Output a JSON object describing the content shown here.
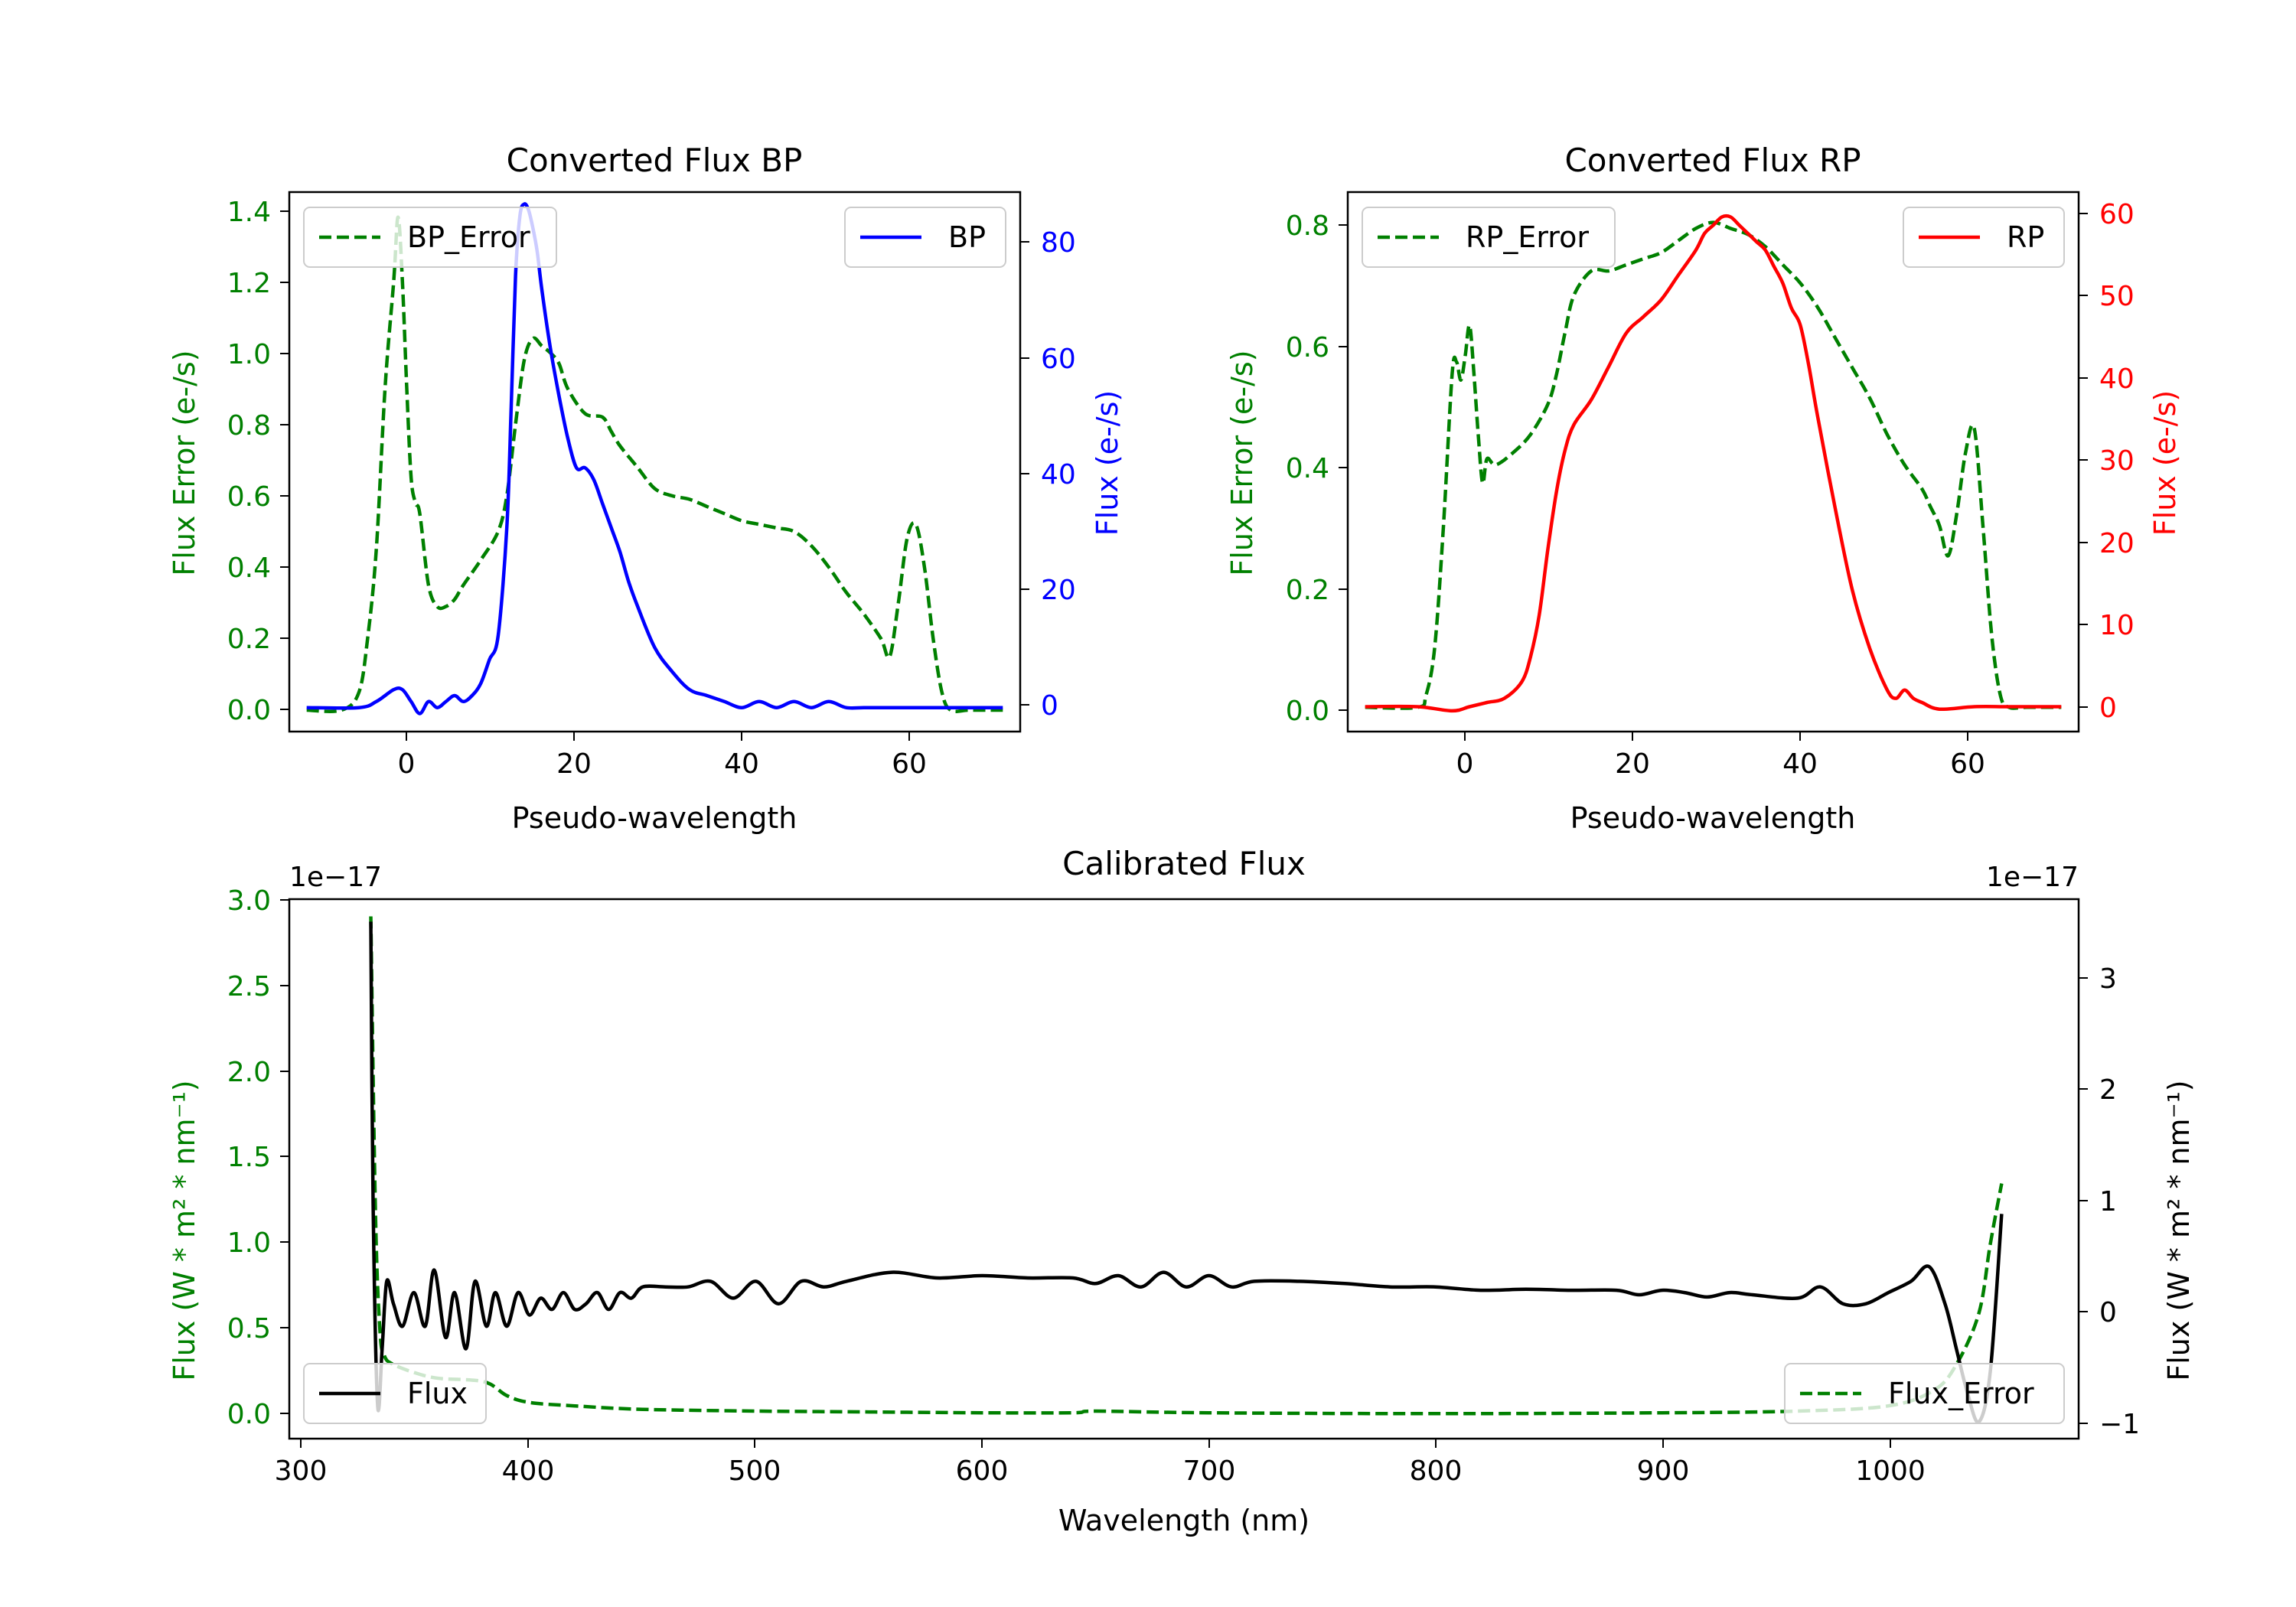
{
  "colors": {
    "green": "#008000",
    "blue": "#0000ff",
    "red": "#ff0000",
    "black": "#000000",
    "legend_edge": "#cccccc"
  },
  "chart_data": [
    {
      "id": "bp",
      "type": "line",
      "title": "Converted Flux BP",
      "xlabel": "Pseudo-wavelength",
      "xlim": [
        -12,
        72
      ],
      "xticks": [
        "0",
        "20",
        "40",
        "60"
      ],
      "left_axis": {
        "label": "Flux Error (e-/s)",
        "color_key": "green",
        "ylim": [
          -0.06,
          1.45
        ],
        "ticks": [
          "0.0",
          "0.2",
          "0.4",
          "0.6",
          "0.8",
          "1.0",
          "1.2",
          "1.4"
        ]
      },
      "right_axis": {
        "label": "Flux (e-/s)",
        "color_key": "blue",
        "ylim": [
          -4,
          86
        ],
        "ticks": [
          "0",
          "20",
          "40",
          "60",
          "80"
        ]
      },
      "series": [
        {
          "name": "BP_Error",
          "axis": "left",
          "style": "dashed",
          "color_key": "green",
          "x": [
            -10,
            -6,
            -4,
            -3,
            -2,
            -1,
            0,
            0.5,
            1,
            1.5,
            2,
            2.5,
            3,
            4,
            5,
            6,
            7,
            8,
            10,
            12,
            13,
            14,
            15,
            16,
            17,
            18,
            19,
            20,
            22,
            24,
            25,
            26,
            28,
            30,
            32,
            34,
            36,
            38,
            40,
            42,
            44,
            46,
            48,
            50,
            52,
            54,
            56,
            57,
            58,
            59,
            60,
            61,
            62,
            63,
            64,
            66,
            68,
            70
          ],
          "y": [
            0.0,
            0.0,
            0.05,
            0.2,
            0.45,
            0.9,
            1.2,
            1.38,
            1.2,
            0.9,
            0.65,
            0.58,
            0.55,
            0.35,
            0.29,
            0.29,
            0.31,
            0.35,
            0.42,
            0.5,
            0.6,
            0.8,
            0.98,
            1.04,
            1.02,
            1.0,
            0.97,
            0.9,
            0.83,
            0.82,
            0.78,
            0.74,
            0.68,
            0.62,
            0.6,
            0.59,
            0.57,
            0.55,
            0.53,
            0.52,
            0.51,
            0.5,
            0.46,
            0.4,
            0.33,
            0.27,
            0.2,
            0.15,
            0.3,
            0.48,
            0.52,
            0.4,
            0.2,
            0.05,
            0.0,
            0.0,
            0.0,
            0.0
          ]
        },
        {
          "name": "BP",
          "axis": "right",
          "style": "solid",
          "color_key": "blue",
          "x": [
            -10,
            -4,
            -2,
            0,
            1,
            2,
            3,
            4,
            5,
            6,
            7,
            8,
            9,
            10,
            11,
            12,
            13,
            13.5,
            14,
            14.5,
            15,
            15.5,
            16,
            16.5,
            17,
            18,
            19,
            20,
            21,
            22,
            23,
            24,
            25,
            26,
            27,
            28,
            30,
            32,
            34,
            36,
            38,
            40,
            42,
            44,
            46,
            48,
            50,
            52,
            54,
            56,
            60,
            64,
            68,
            70
          ],
          "y": [
            0,
            0,
            1,
            3,
            3,
            1,
            -1,
            1,
            0,
            1,
            2,
            1,
            2,
            4,
            8,
            12,
            30,
            50,
            72,
            82,
            84,
            83,
            80,
            76,
            70,
            60,
            52,
            45,
            40,
            40,
            38,
            34,
            30,
            26,
            21,
            17,
            10,
            6,
            3,
            2,
            1,
            0,
            1,
            0,
            1,
            0,
            1,
            0,
            0,
            0,
            0,
            0,
            0,
            0
          ]
        }
      ],
      "legend_left": "BP_Error",
      "legend_right": "BP"
    },
    {
      "id": "rp",
      "type": "line",
      "title": "Converted Flux RP",
      "xlabel": "Pseudo-wavelength",
      "xlim": [
        -12,
        72
      ],
      "xticks": [
        "0",
        "20",
        "40",
        "60"
      ],
      "left_axis": {
        "label": "Flux Error (e-/s)",
        "color_key": "green",
        "ylim": [
          -0.04,
          0.85
        ],
        "ticks": [
          "0.0",
          "0.2",
          "0.4",
          "0.6",
          "0.8"
        ]
      },
      "right_axis": {
        "label": "Flux (e-/s)",
        "color_key": "red",
        "ylim": [
          -3,
          62
        ],
        "ticks": [
          "0",
          "10",
          "20",
          "30",
          "40",
          "50",
          "60"
        ]
      },
      "series": [
        {
          "name": "RP_Error",
          "axis": "left",
          "style": "dashed",
          "color_key": "green",
          "x": [
            -10,
            -4,
            -3,
            -2,
            -1,
            0,
            0.5,
            1,
            1.5,
            2,
            2.5,
            3,
            3.5,
            4,
            5,
            7,
            9,
            11,
            12,
            13,
            14,
            16,
            18,
            20,
            22,
            24,
            26,
            28,
            30,
            32,
            34,
            36,
            38,
            40,
            42,
            44,
            46,
            48,
            50,
            52,
            54,
            55,
            56,
            57,
            58,
            59,
            60,
            61,
            62,
            63,
            64,
            66,
            70
          ],
          "y": [
            0.0,
            0.0,
            0.02,
            0.1,
            0.3,
            0.55,
            0.57,
            0.54,
            0.58,
            0.63,
            0.55,
            0.45,
            0.37,
            0.41,
            0.4,
            0.42,
            0.45,
            0.5,
            0.55,
            0.62,
            0.68,
            0.72,
            0.72,
            0.73,
            0.74,
            0.75,
            0.77,
            0.79,
            0.8,
            0.79,
            0.78,
            0.76,
            0.73,
            0.7,
            0.66,
            0.61,
            0.56,
            0.51,
            0.45,
            0.4,
            0.36,
            0.33,
            0.3,
            0.25,
            0.32,
            0.42,
            0.46,
            0.3,
            0.12,
            0.02,
            0.0,
            0.0,
            0.0
          ]
        },
        {
          "name": "RP",
          "axis": "right",
          "style": "solid",
          "color_key": "red",
          "x": [
            -10,
            -4,
            0,
            2,
            4,
            6,
            8,
            9,
            10,
            11,
            12,
            13,
            14,
            16,
            18,
            20,
            22,
            24,
            26,
            28,
            29,
            30,
            31,
            32,
            33,
            34,
            35,
            36,
            37,
            38,
            39,
            40,
            41,
            42,
            44,
            46,
            48,
            50,
            51,
            52,
            53,
            54,
            56,
            60,
            64,
            70
          ],
          "y": [
            0,
            0,
            -0.5,
            0,
            0.5,
            1,
            3,
            6,
            11,
            19,
            26,
            31,
            34,
            37,
            41,
            45,
            47,
            49,
            52,
            55,
            57,
            58,
            59,
            59,
            58,
            57,
            56,
            55,
            53,
            51,
            48,
            46,
            41,
            35,
            24,
            14,
            7,
            2,
            1,
            2,
            1,
            0.5,
            -0.3,
            0,
            0,
            0
          ]
        }
      ],
      "legend_left": "RP_Error",
      "legend_right": "RP"
    },
    {
      "id": "cal",
      "type": "line",
      "title": "Calibrated Flux",
      "xlabel": "Wavelength (nm)",
      "xlim": [
        294,
        1084
      ],
      "xticks": [
        "300",
        "400",
        "500",
        "600",
        "700",
        "800",
        "900",
        "1000"
      ],
      "left_axis": {
        "label": "Flux (W * m² * nm⁻¹)",
        "color_key": "green",
        "ylim": [
          -0.13,
          3.0
        ],
        "ticks": [
          "0.0",
          "0.5",
          "1.0",
          "1.5",
          "2.0",
          "2.5",
          "3.0"
        ],
        "offset": "1e−17"
      },
      "right_axis": {
        "label": "Flux (W * m² * nm⁻¹)",
        "color_key": "black",
        "ylim": [
          -1.1,
          3.7
        ],
        "ticks": [
          "−1",
          "0",
          "1",
          "2",
          "3"
        ],
        "offset": "1e−17"
      },
      "series": [
        {
          "name": "Flux_Error",
          "axis": "left",
          "style": "dashed",
          "color_key": "green",
          "x": [
            330,
            332,
            334,
            336,
            340,
            350,
            360,
            380,
            390,
            400,
            420,
            450,
            500,
            550,
            600,
            640,
            650,
            700,
            800,
            900,
            960,
            1000,
            1020,
            1030,
            1040,
            1045,
            1050
          ],
          "y": [
            2.9,
            1.2,
            0.5,
            0.35,
            0.3,
            0.25,
            0.22,
            0.2,
            0.12,
            0.08,
            0.06,
            0.04,
            0.03,
            0.025,
            0.02,
            0.02,
            0.03,
            0.02,
            0.015,
            0.02,
            0.03,
            0.06,
            0.15,
            0.3,
            0.6,
            1.0,
            1.35
          ]
        },
        {
          "name": "Flux",
          "axis": "right",
          "style": "solid",
          "color_key": "black",
          "x": [
            330,
            331,
            333,
            335,
            337,
            340,
            344,
            349,
            354,
            358,
            363,
            367,
            372,
            376,
            381,
            385,
            390,
            395,
            400,
            405,
            410,
            415,
            420,
            425,
            430,
            435,
            440,
            445,
            450,
            460,
            470,
            480,
            490,
            500,
            510,
            520,
            530,
            540,
            560,
            580,
            600,
            620,
            640,
            650,
            660,
            670,
            680,
            690,
            700,
            710,
            720,
            740,
            760,
            780,
            800,
            820,
            840,
            860,
            880,
            890,
            900,
            910,
            920,
            930,
            940,
            960,
            970,
            980,
            990,
            1000,
            1010,
            1018,
            1025,
            1030,
            1035,
            1040,
            1045,
            1050
          ],
          "y": [
            3.5,
            1.0,
            -0.8,
            -0.3,
            0.3,
            0.1,
            -0.1,
            0.2,
            -0.1,
            0.4,
            -0.2,
            0.2,
            -0.3,
            0.3,
            -0.1,
            0.2,
            -0.1,
            0.2,
            0.0,
            0.15,
            0.05,
            0.2,
            0.05,
            0.1,
            0.2,
            0.05,
            0.2,
            0.15,
            0.25,
            0.25,
            0.25,
            0.3,
            0.15,
            0.3,
            0.1,
            0.3,
            0.25,
            0.3,
            0.38,
            0.33,
            0.35,
            0.33,
            0.33,
            0.28,
            0.35,
            0.25,
            0.38,
            0.25,
            0.35,
            0.25,
            0.3,
            0.3,
            0.28,
            0.25,
            0.25,
            0.22,
            0.23,
            0.22,
            0.22,
            0.18,
            0.22,
            0.2,
            0.16,
            0.2,
            0.18,
            0.15,
            0.25,
            0.1,
            0.1,
            0.2,
            0.3,
            0.43,
            0.1,
            -0.3,
            -0.7,
            -0.95,
            -0.5,
            0.9
          ]
        }
      ],
      "legend_left": "Flux",
      "legend_right": "Flux_Error"
    }
  ]
}
